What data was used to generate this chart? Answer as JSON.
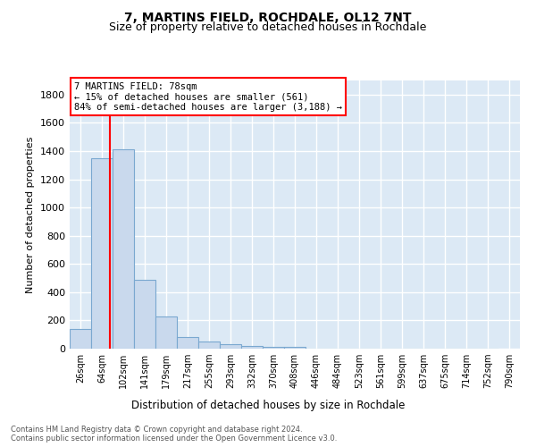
{
  "title1": "7, MARTINS FIELD, ROCHDALE, OL12 7NT",
  "title2": "Size of property relative to detached houses in Rochdale",
  "xlabel": "Distribution of detached houses by size in Rochdale",
  "ylabel": "Number of detached properties",
  "footer": "Contains HM Land Registry data © Crown copyright and database right 2024.\nContains public sector information licensed under the Open Government Licence v3.0.",
  "bin_labels": [
    "26sqm",
    "64sqm",
    "102sqm",
    "141sqm",
    "179sqm",
    "217sqm",
    "255sqm",
    "293sqm",
    "332sqm",
    "370sqm",
    "408sqm",
    "446sqm",
    "484sqm",
    "523sqm",
    "561sqm",
    "599sqm",
    "637sqm",
    "675sqm",
    "714sqm",
    "752sqm",
    "790sqm"
  ],
  "bar_values": [
    140,
    1350,
    1410,
    490,
    230,
    85,
    50,
    30,
    20,
    15,
    15,
    0,
    0,
    0,
    0,
    0,
    0,
    0,
    0,
    0
  ],
  "bar_color": "#c9d9ed",
  "bar_edge_color": "#7aa8d0",
  "background_color": "#dce9f5",
  "grid_color": "#ffffff",
  "annotation_text": "7 MARTINS FIELD: 78sqm\n← 15% of detached houses are smaller (561)\n84% of semi-detached houses are larger (3,188) →",
  "ylim": [
    0,
    1900
  ],
  "yticks": [
    0,
    200,
    400,
    600,
    800,
    1000,
    1200,
    1400,
    1600,
    1800
  ]
}
